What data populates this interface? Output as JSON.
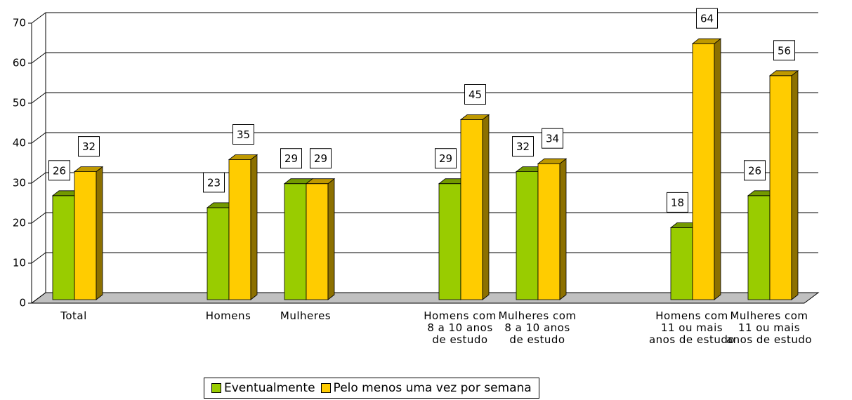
{
  "chart_data": {
    "type": "bar3d",
    "categories": [
      "Total",
      null,
      "Homens",
      "Mulheres",
      null,
      "Homens com\n8 a 10 anos\nde estudo",
      "Mulheres com\n8 a 10 anos\nde estudo",
      null,
      "Homens com\n11 ou mais\nanos de estudo",
      "Mulheres com\n11 ou mais\nanos de estudo"
    ],
    "series": [
      {
        "name": "Eventualmente",
        "color": "#99cc00",
        "values": [
          26,
          null,
          23,
          29,
          null,
          29,
          32,
          null,
          18,
          26
        ]
      },
      {
        "name": "Pelo menos uma vez por semana",
        "color": "#ffcc00",
        "values": [
          32,
          null,
          35,
          29,
          null,
          45,
          34,
          null,
          64,
          56
        ]
      }
    ],
    "ylim": [
      0,
      70
    ],
    "yticks": [
      0,
      10,
      20,
      30,
      40,
      50,
      60,
      70
    ],
    "grid": true,
    "legend": "bottom"
  }
}
